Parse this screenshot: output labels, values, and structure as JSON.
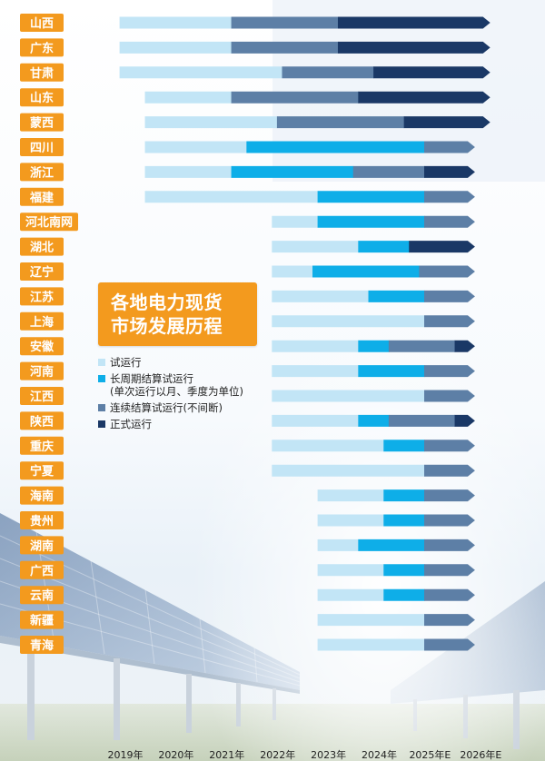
{
  "title": [
    "各地电力现货",
    "市场发展历程"
  ],
  "legend": [
    {
      "label": "试运行",
      "color": "#c2e5f6"
    },
    {
      "label": "长周期结算试运行\n(单次运行以月、季度为单位)",
      "color": "#0eaee8"
    },
    {
      "label": "连续结算试运行(不间断)",
      "color": "#5d7fa6"
    },
    {
      "label": "正式运行",
      "color": "#1a3866"
    }
  ],
  "chart_data": {
    "type": "bar",
    "orientation": "horizontal-timeline",
    "x_ticks": [
      "2019年",
      "2020年",
      "2021年",
      "2022年",
      "2023年",
      "2024年",
      "2025年E",
      "2026年E"
    ],
    "xlim": [
      2019.0,
      2027.3
    ],
    "phases": [
      "试运行",
      "长周期结算试运行(单次运行以月、季度为单位)",
      "连续结算试运行(不间断)",
      "正式运行"
    ],
    "series": [
      {
        "region": "山西",
        "segments": [
          {
            "phase": 0,
            "start": 2019.1,
            "end": 2021.3
          },
          {
            "phase": 2,
            "start": 2021.3,
            "end": 2023.4
          },
          {
            "phase": 3,
            "start": 2023.4,
            "end": 2026.4
          }
        ]
      },
      {
        "region": "广东",
        "segments": [
          {
            "phase": 0,
            "start": 2019.1,
            "end": 2021.3
          },
          {
            "phase": 2,
            "start": 2021.3,
            "end": 2023.4
          },
          {
            "phase": 3,
            "start": 2023.4,
            "end": 2026.4
          }
        ]
      },
      {
        "region": "甘肃",
        "segments": [
          {
            "phase": 0,
            "start": 2019.1,
            "end": 2022.3
          },
          {
            "phase": 2,
            "start": 2022.3,
            "end": 2024.1
          },
          {
            "phase": 3,
            "start": 2024.1,
            "end": 2026.4
          }
        ]
      },
      {
        "region": "山东",
        "segments": [
          {
            "phase": 0,
            "start": 2019.6,
            "end": 2021.3
          },
          {
            "phase": 2,
            "start": 2021.3,
            "end": 2023.8
          },
          {
            "phase": 3,
            "start": 2023.8,
            "end": 2026.4
          }
        ]
      },
      {
        "region": "蒙西",
        "segments": [
          {
            "phase": 0,
            "start": 2019.6,
            "end": 2022.2
          },
          {
            "phase": 2,
            "start": 2022.2,
            "end": 2024.7
          },
          {
            "phase": 3,
            "start": 2024.7,
            "end": 2026.4
          }
        ]
      },
      {
        "region": "四川",
        "segments": [
          {
            "phase": 0,
            "start": 2019.6,
            "end": 2021.6
          },
          {
            "phase": 1,
            "start": 2021.6,
            "end": 2025.1
          },
          {
            "phase": 2,
            "start": 2025.1,
            "end": 2026.1
          }
        ]
      },
      {
        "region": "浙江",
        "segments": [
          {
            "phase": 0,
            "start": 2019.6,
            "end": 2021.3
          },
          {
            "phase": 1,
            "start": 2021.3,
            "end": 2023.7
          },
          {
            "phase": 2,
            "start": 2023.7,
            "end": 2025.1
          },
          {
            "phase": 3,
            "start": 2025.1,
            "end": 2026.1
          }
        ]
      },
      {
        "region": "福建",
        "segments": [
          {
            "phase": 0,
            "start": 2019.6,
            "end": 2023.0
          },
          {
            "phase": 1,
            "start": 2023.0,
            "end": 2025.1
          },
          {
            "phase": 2,
            "start": 2025.1,
            "end": 2026.1
          }
        ]
      },
      {
        "region": "河北南网",
        "segments": [
          {
            "phase": 0,
            "start": 2022.1,
            "end": 2023.0
          },
          {
            "phase": 1,
            "start": 2023.0,
            "end": 2025.1
          },
          {
            "phase": 2,
            "start": 2025.1,
            "end": 2026.1
          }
        ]
      },
      {
        "region": "湖北",
        "segments": [
          {
            "phase": 0,
            "start": 2022.1,
            "end": 2023.8
          },
          {
            "phase": 1,
            "start": 2023.8,
            "end": 2024.8
          },
          {
            "phase": 3,
            "start": 2024.8,
            "end": 2026.1
          }
        ]
      },
      {
        "region": "辽宁",
        "segments": [
          {
            "phase": 0,
            "start": 2022.1,
            "end": 2022.9
          },
          {
            "phase": 1,
            "start": 2022.9,
            "end": 2025.0
          },
          {
            "phase": 2,
            "start": 2025.0,
            "end": 2026.1
          }
        ]
      },
      {
        "region": "江苏",
        "segments": [
          {
            "phase": 0,
            "start": 2022.1,
            "end": 2024.0
          },
          {
            "phase": 1,
            "start": 2024.0,
            "end": 2025.1
          },
          {
            "phase": 2,
            "start": 2025.1,
            "end": 2026.1
          }
        ]
      },
      {
        "region": "上海",
        "segments": [
          {
            "phase": 0,
            "start": 2022.1,
            "end": 2025.1
          },
          {
            "phase": 2,
            "start": 2025.1,
            "end": 2026.1
          }
        ]
      },
      {
        "region": "安徽",
        "segments": [
          {
            "phase": 0,
            "start": 2022.1,
            "end": 2023.8
          },
          {
            "phase": 1,
            "start": 2023.8,
            "end": 2024.4
          },
          {
            "phase": 2,
            "start": 2024.4,
            "end": 2025.7
          },
          {
            "phase": 3,
            "start": 2025.7,
            "end": 2026.1
          }
        ]
      },
      {
        "region": "河南",
        "segments": [
          {
            "phase": 0,
            "start": 2022.1,
            "end": 2023.8
          },
          {
            "phase": 1,
            "start": 2023.8,
            "end": 2025.1
          },
          {
            "phase": 2,
            "start": 2025.1,
            "end": 2026.1
          }
        ]
      },
      {
        "region": "江西",
        "segments": [
          {
            "phase": 0,
            "start": 2022.1,
            "end": 2025.1
          },
          {
            "phase": 2,
            "start": 2025.1,
            "end": 2026.1
          }
        ]
      },
      {
        "region": "陕西",
        "segments": [
          {
            "phase": 0,
            "start": 2022.1,
            "end": 2023.8
          },
          {
            "phase": 1,
            "start": 2023.8,
            "end": 2024.4
          },
          {
            "phase": 2,
            "start": 2024.4,
            "end": 2025.7
          },
          {
            "phase": 3,
            "start": 2025.7,
            "end": 2026.1
          }
        ]
      },
      {
        "region": "重庆",
        "segments": [
          {
            "phase": 0,
            "start": 2022.1,
            "end": 2024.3
          },
          {
            "phase": 1,
            "start": 2024.3,
            "end": 2025.1
          },
          {
            "phase": 2,
            "start": 2025.1,
            "end": 2026.1
          }
        ]
      },
      {
        "region": "宁夏",
        "segments": [
          {
            "phase": 0,
            "start": 2022.1,
            "end": 2025.1
          },
          {
            "phase": 2,
            "start": 2025.1,
            "end": 2026.1
          }
        ]
      },
      {
        "region": "海南",
        "segments": [
          {
            "phase": 0,
            "start": 2023.0,
            "end": 2024.3
          },
          {
            "phase": 1,
            "start": 2024.3,
            "end": 2025.1
          },
          {
            "phase": 2,
            "start": 2025.1,
            "end": 2026.1
          }
        ]
      },
      {
        "region": "贵州",
        "segments": [
          {
            "phase": 0,
            "start": 2023.0,
            "end": 2024.3
          },
          {
            "phase": 1,
            "start": 2024.3,
            "end": 2025.1
          },
          {
            "phase": 2,
            "start": 2025.1,
            "end": 2026.1
          }
        ]
      },
      {
        "region": "湖南",
        "segments": [
          {
            "phase": 0,
            "start": 2023.0,
            "end": 2023.8
          },
          {
            "phase": 1,
            "start": 2023.8,
            "end": 2025.1
          },
          {
            "phase": 2,
            "start": 2025.1,
            "end": 2026.1
          }
        ]
      },
      {
        "region": "广西",
        "segments": [
          {
            "phase": 0,
            "start": 2023.0,
            "end": 2024.3
          },
          {
            "phase": 1,
            "start": 2024.3,
            "end": 2025.1
          },
          {
            "phase": 2,
            "start": 2025.1,
            "end": 2026.1
          }
        ]
      },
      {
        "region": "云南",
        "segments": [
          {
            "phase": 0,
            "start": 2023.0,
            "end": 2024.3
          },
          {
            "phase": 1,
            "start": 2024.3,
            "end": 2025.1
          },
          {
            "phase": 2,
            "start": 2025.1,
            "end": 2026.1
          }
        ]
      },
      {
        "region": "新疆",
        "segments": [
          {
            "phase": 0,
            "start": 2023.0,
            "end": 2025.1
          },
          {
            "phase": 2,
            "start": 2025.1,
            "end": 2026.1
          }
        ]
      },
      {
        "region": "青海",
        "segments": [
          {
            "phase": 0,
            "start": 2023.0,
            "end": 2025.1
          },
          {
            "phase": 2,
            "start": 2025.1,
            "end": 2026.1
          }
        ]
      }
    ]
  }
}
